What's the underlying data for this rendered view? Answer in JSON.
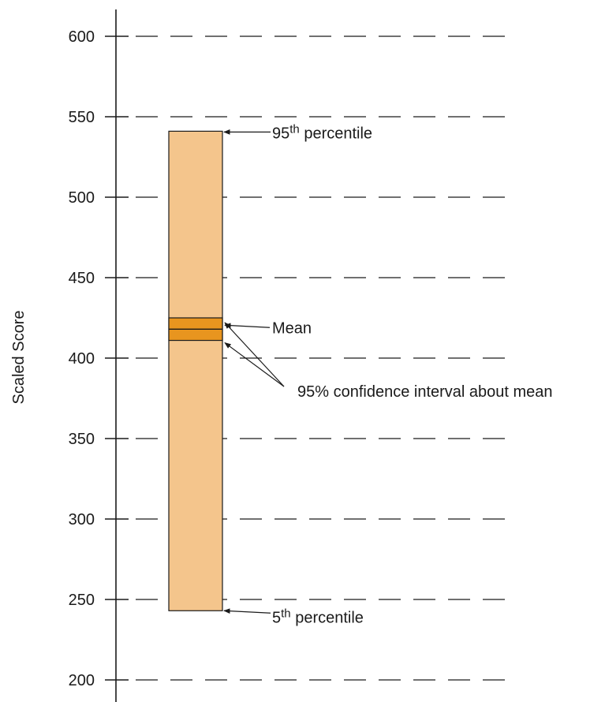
{
  "chart_data": {
    "type": "bar",
    "ylabel": "Scaled Score",
    "ylim": [
      200,
      600
    ],
    "yticks": [
      200,
      250,
      300,
      350,
      400,
      450,
      500,
      550,
      600
    ],
    "grid": "dashed horizontal",
    "distribution": {
      "p5": 243,
      "p95": 541,
      "mean": 418,
      "ci_low": 411,
      "ci_high": 425
    },
    "annotations": {
      "p95": {
        "base": "95",
        "sup": "th",
        "rest": " percentile"
      },
      "p5": {
        "base": "5",
        "sup": "th",
        "rest": " percentile"
      },
      "mean": "Mean",
      "ci": "95% confidence interval about mean"
    },
    "colors": {
      "percentile_bar": "#f4c58c",
      "confidence_band": "#e8951f",
      "outline": "#1a1a1a"
    }
  }
}
